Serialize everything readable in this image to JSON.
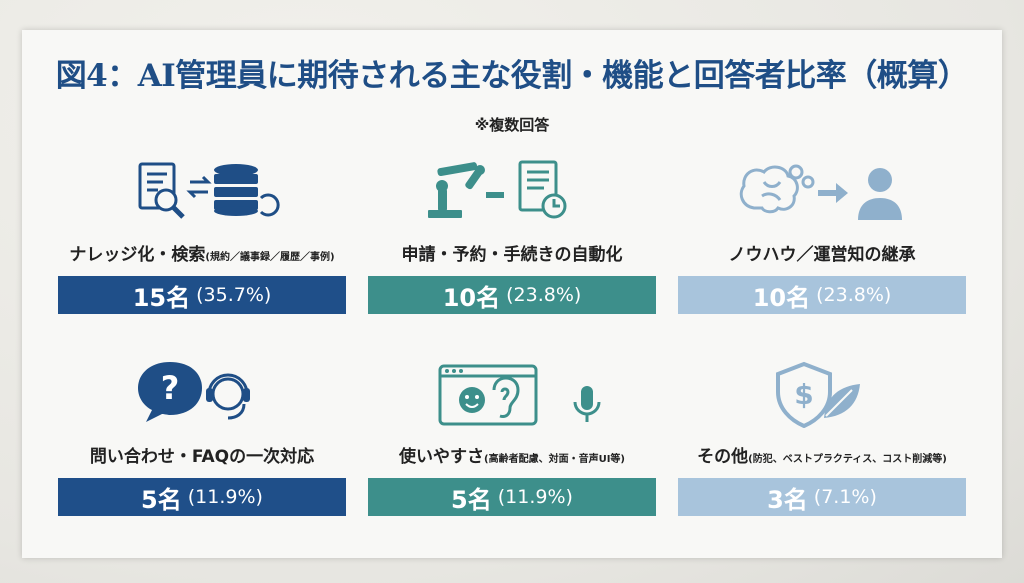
{
  "title": "図4：AI管理員に期待される主な役割・機能と回答者比率（概算）",
  "note": "※複数回答",
  "colors": {
    "navy": "#1f4f89",
    "teal": "#3d8f8b",
    "light": "#a8c4dc",
    "title": "#1f4e86"
  },
  "chart_data": {
    "type": "table",
    "title": "図4：AI管理員に期待される主な役割・機能と回答者比率（概算）",
    "note": "※複数回答",
    "items": [
      {
        "label": "ナレッジ化・検索",
        "sublabel": "(規約／議事録／履歴／事例)",
        "count": 15,
        "count_text": "15名",
        "percent": 35.7,
        "percent_text": "(35.7%)",
        "icon": "document-search-database-icon"
      },
      {
        "label": "申請・予約・手続きの自動化",
        "sublabel": "",
        "count": 10,
        "count_text": "10名",
        "percent": 23.8,
        "percent_text": "(23.8%)",
        "icon": "robot-arm-form-clock-icon"
      },
      {
        "label": "ノウハウ／運営知の継承",
        "sublabel": "",
        "count": 10,
        "count_text": "10名",
        "percent": 23.8,
        "percent_text": "(23.8%)",
        "icon": "brain-to-person-icon"
      },
      {
        "label": "問い合わせ・FAQの一次対応",
        "sublabel": "",
        "count": 5,
        "count_text": "5名",
        "percent": 11.9,
        "percent_text": "(11.9%)",
        "icon": "question-headset-icon"
      },
      {
        "label": "使いやすさ",
        "sublabel": "(高齢者配慮、対面・音声UI等)",
        "count": 5,
        "count_text": "5名",
        "percent": 11.9,
        "percent_text": "(11.9%)",
        "icon": "smile-ear-microphone-icon"
      },
      {
        "label": "その他",
        "sublabel": "(防犯、ベストプラクティス、コスト削減等)",
        "count": 3,
        "count_text": "3名",
        "percent": 7.1,
        "percent_text": "(7.1%)",
        "icon": "shield-dollar-leaf-icon"
      }
    ]
  }
}
